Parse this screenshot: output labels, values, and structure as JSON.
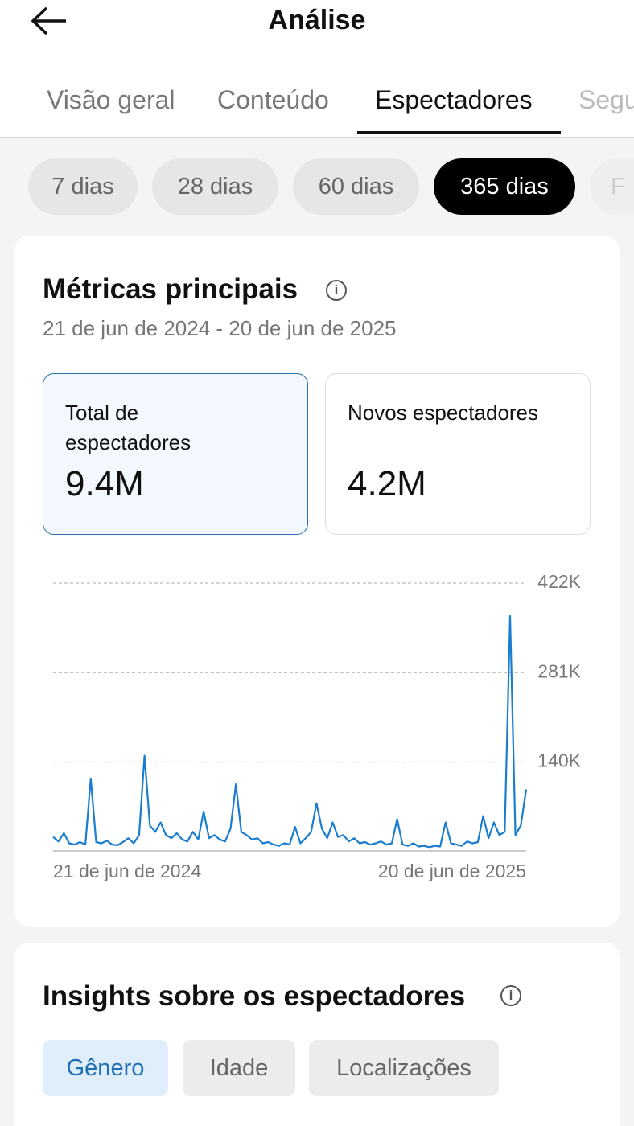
{
  "header": {
    "title": "Análise"
  },
  "tabs": [
    "Visão geral",
    "Conteúdo",
    "Espectadores",
    "Segu"
  ],
  "periods": [
    "7 dias",
    "28 dias",
    "60 dias",
    "365 dias",
    "F"
  ],
  "metrics_card": {
    "title": "Métricas principais",
    "date_range": "21 de jun de 2024 - 20 de jun de 2025",
    "metrics": [
      {
        "label": "Total de espectadores",
        "value": "9.4M"
      },
      {
        "label": "Novos espectadores",
        "value": "4.2M"
      }
    ]
  },
  "chart_data": {
    "type": "line",
    "color": "#1b7dcf",
    "grid": true,
    "categories": [
      "21 de jun de 2024",
      null,
      null,
      null,
      null,
      null,
      null,
      null,
      null,
      null,
      null,
      null,
      null,
      null,
      null,
      null,
      null,
      null,
      null,
      null,
      null,
      null,
      null,
      null,
      null,
      null,
      null,
      null,
      null,
      null,
      null,
      null,
      null,
      null,
      null,
      null,
      null,
      null,
      null,
      null,
      null,
      null,
      null,
      null,
      null,
      null,
      null,
      null,
      null,
      null,
      null,
      null,
      null,
      null,
      null,
      null,
      null,
      null,
      null,
      null,
      null,
      null,
      null,
      null,
      null,
      null,
      null,
      null,
      null,
      null,
      null,
      null,
      null,
      null,
      null,
      null,
      null,
      null,
      null,
      null,
      null,
      null,
      null,
      null,
      null,
      null,
      null,
      null,
      "20 de jun de 2025"
    ],
    "values": [
      22000,
      15000,
      28000,
      12000,
      10000,
      14000,
      10000,
      114000,
      14000,
      12000,
      16000,
      10000,
      9000,
      14000,
      20000,
      12000,
      25000,
      150000,
      40000,
      30000,
      45000,
      25000,
      20000,
      28000,
      18000,
      15000,
      30000,
      18000,
      62000,
      20000,
      25000,
      18000,
      15000,
      35000,
      105000,
      30000,
      25000,
      18000,
      20000,
      12000,
      14000,
      10000,
      8000,
      12000,
      10000,
      38000,
      12000,
      20000,
      30000,
      75000,
      35000,
      20000,
      45000,
      22000,
      25000,
      15000,
      20000,
      12000,
      14000,
      10000,
      12000,
      15000,
      10000,
      12000,
      50000,
      10000,
      8000,
      12000,
      7000,
      8000,
      6000,
      8000,
      7000,
      45000,
      12000,
      10000,
      8000,
      15000,
      12000,
      14000,
      55000,
      20000,
      45000,
      25000,
      30000,
      370000,
      25000,
      40000,
      97000
    ],
    "ylim": [
      0,
      422000
    ],
    "yticks": [
      {
        "value": 140000,
        "label": "140K"
      },
      {
        "value": 281000,
        "label": "281K"
      },
      {
        "value": 422000,
        "label": "422K"
      }
    ]
  },
  "insights": {
    "title": "Insights sobre os espectadores",
    "tabs": [
      "Gênero",
      "Idade",
      "Localizações"
    ]
  }
}
